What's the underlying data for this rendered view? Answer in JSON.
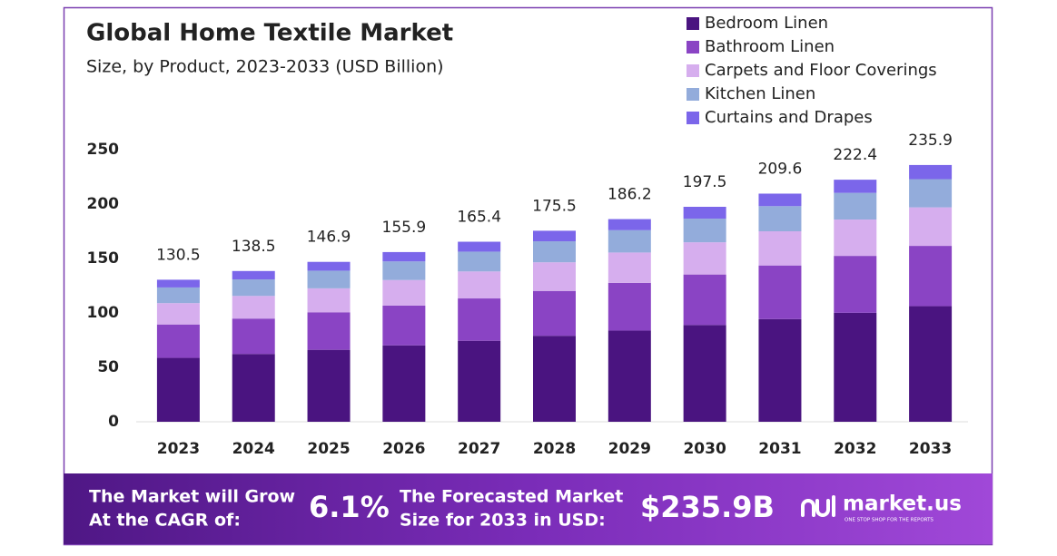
{
  "chart_data": {
    "type": "stacked-bar",
    "title": "Global Home Textile Market",
    "subtitle": "Size, by Product, 2023-2033 (USD Billion)",
    "categories": [
      "2023",
      "2024",
      "2025",
      "2026",
      "2027",
      "2028",
      "2029",
      "2030",
      "2031",
      "2032",
      "2033"
    ],
    "series": [
      {
        "name": "Bedroom Linen",
        "color": "#4a1480",
        "values": [
          58.7,
          62.3,
          66.1,
          70.2,
          74.4,
          79.0,
          83.8,
          88.9,
          94.3,
          100.1,
          106.2
        ]
      },
      {
        "name": "Bathroom Linen",
        "color": "#8a44c4",
        "values": [
          30.7,
          32.5,
          34.5,
          36.6,
          38.9,
          41.2,
          43.8,
          46.4,
          49.3,
          52.3,
          55.4
        ]
      },
      {
        "name": "Carpets and Floor Coverings",
        "color": "#d6aeee",
        "values": [
          19.6,
          20.8,
          22.0,
          23.4,
          24.8,
          26.3,
          27.9,
          29.6,
          31.4,
          33.4,
          35.4
        ]
      },
      {
        "name": "Kitchen Linen",
        "color": "#93acdb",
        "values": [
          14.4,
          15.2,
          16.2,
          17.1,
          18.2,
          19.3,
          20.5,
          21.7,
          23.1,
          24.5,
          25.9
        ]
      },
      {
        "name": "Curtains and Drapes",
        "color": "#7b66ea",
        "values": [
          7.1,
          7.7,
          8.1,
          8.6,
          9.1,
          9.7,
          10.2,
          10.9,
          11.5,
          12.1,
          13.0
        ]
      }
    ],
    "totals": [
      130.5,
      138.5,
      146.9,
      155.9,
      165.4,
      175.5,
      186.2,
      197.5,
      209.6,
      222.4,
      235.9
    ],
    "ylim": [
      0,
      250
    ],
    "yticks": [
      0,
      50,
      100,
      150,
      200,
      250
    ]
  },
  "footer": {
    "cagr_text": [
      "The Market will Grow",
      "At the CAGR of:"
    ],
    "cagr_value": "6.1%",
    "forecast_text": [
      "The Forecasted Market",
      "Size for 2033 in USD:"
    ],
    "forecast_value": "$235.9B",
    "brand": "market.us",
    "tagline": "ONE STOP SHOP FOR THE REPORTS"
  }
}
